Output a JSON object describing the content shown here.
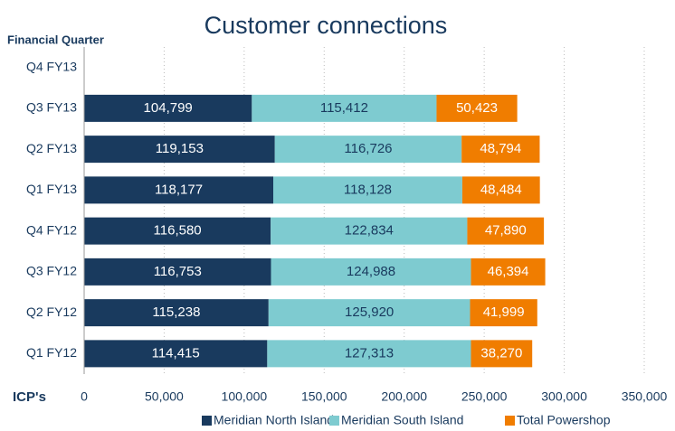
{
  "chart_data": {
    "type": "stacked-barh",
    "title": "Customer connections",
    "y_label": "Financial Quarter",
    "x_label": "ICP's",
    "categories": [
      "Q4 FY13",
      "Q3 FY13",
      "Q2 FY13",
      "Q1 FY13",
      "Q4 FY12",
      "Q3 FY12",
      "Q2 FY12",
      "Q1 FY12"
    ],
    "series": [
      {
        "name": "Meridian North Island",
        "color": "#193a5e",
        "label_color": "#ffffff",
        "values": [
          null,
          104799,
          119153,
          118177,
          116580,
          116753,
          115238,
          114415
        ],
        "value_labels": [
          null,
          "104,799",
          "119,153",
          "118,177",
          "116,580",
          "116,753",
          "115,238",
          "114,415"
        ]
      },
      {
        "name": "Meridian South Island",
        "color": "#7ecbd0",
        "label_color": "#193a5e",
        "values": [
          null,
          115412,
          116726,
          118128,
          122834,
          124988,
          125920,
          127313
        ],
        "value_labels": [
          null,
          "115,412",
          "116,726",
          "118,128",
          "122,834",
          "124,988",
          "125,920",
          "127,313"
        ]
      },
      {
        "name": "Total Powershop",
        "color": "#f07d00",
        "label_color": "#ffffff",
        "values": [
          null,
          50423,
          48794,
          48484,
          47890,
          46394,
          41999,
          38270
        ],
        "value_labels": [
          null,
          "50,423",
          "48,794",
          "48,484",
          "47,890",
          "46,394",
          "41,999",
          "38,270"
        ]
      }
    ],
    "xlim": [
      0,
      350000
    ],
    "xticks": [
      0,
      {
        "value": 50000,
        "label": "50,000"
      },
      {
        "value": 100000,
        "label": "100,000"
      },
      {
        "value": 150000,
        "label": "150,000"
      },
      {
        "value": 200000,
        "label": "200,000"
      },
      {
        "value": 250000,
        "label": "250,000"
      },
      {
        "value": 300000,
        "label": "300,000"
      },
      {
        "value": 350000,
        "label": "350,000"
      }
    ],
    "grid": true,
    "legend": "bottom"
  }
}
